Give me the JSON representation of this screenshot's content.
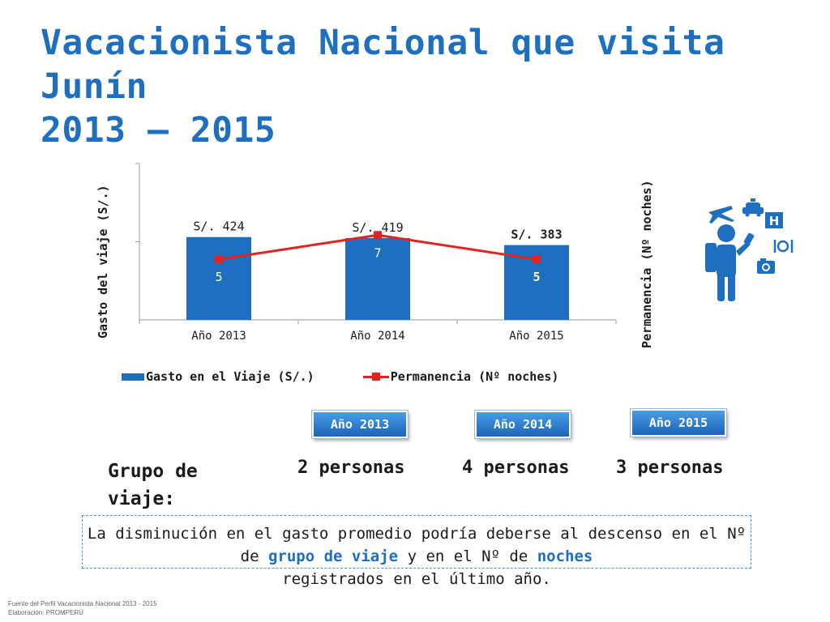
{
  "title": {
    "line1": "Vacacionista Nacional que visita",
    "line2": "Junín",
    "line3": "2013 – 2015"
  },
  "chart_data": {
    "type": "bar",
    "categories": [
      "Año 2013",
      "Año 2014",
      "Año 2015"
    ],
    "series": [
      {
        "name": "Gasto en el Viaje (S/.)",
        "type": "bar",
        "axis": "left",
        "values": [
          424,
          419,
          383
        ],
        "labels": [
          "S/. 424",
          "S/. 419",
          "S/. 383"
        ],
        "color": "#1f6fc0"
      },
      {
        "name": "Permanencia (Nº noches)",
        "type": "line",
        "axis": "right",
        "values": [
          5,
          7,
          5
        ],
        "labels": [
          "5",
          "7",
          "5"
        ],
        "color": "#e52222"
      }
    ],
    "ylabel_left": "Gasto del viaje (S/.)",
    "ylabel_right": "Permanencia (Nº noches)",
    "legend_position": "bottom",
    "grid": false
  },
  "years": [
    "Año 2013",
    "Año 2014",
    "Año 2015"
  ],
  "group": {
    "label": "Grupo de viaje:",
    "values": [
      "2 personas",
      "4 personas",
      "3 personas"
    ]
  },
  "note": {
    "part1": "La disminución en el gasto promedio podría deberse al descenso en el Nº de ",
    "highlight1": "grupo de viaje",
    "part2": " y en el Nº de ",
    "highlight2": "noches",
    "part3": "registrados en el último año."
  },
  "source": {
    "line1": "Fuente del Perfil Vacacionista Nacional 2013 - 2015",
    "line2": "Elaboración: PROMPERÚ"
  },
  "colors": {
    "accent": "#1f6fc0",
    "line": "#e52222"
  },
  "icons": [
    "traveler-icon",
    "airplane-icon",
    "taxi-icon",
    "hotel-icon",
    "restaurant-icon",
    "camera-icon"
  ]
}
